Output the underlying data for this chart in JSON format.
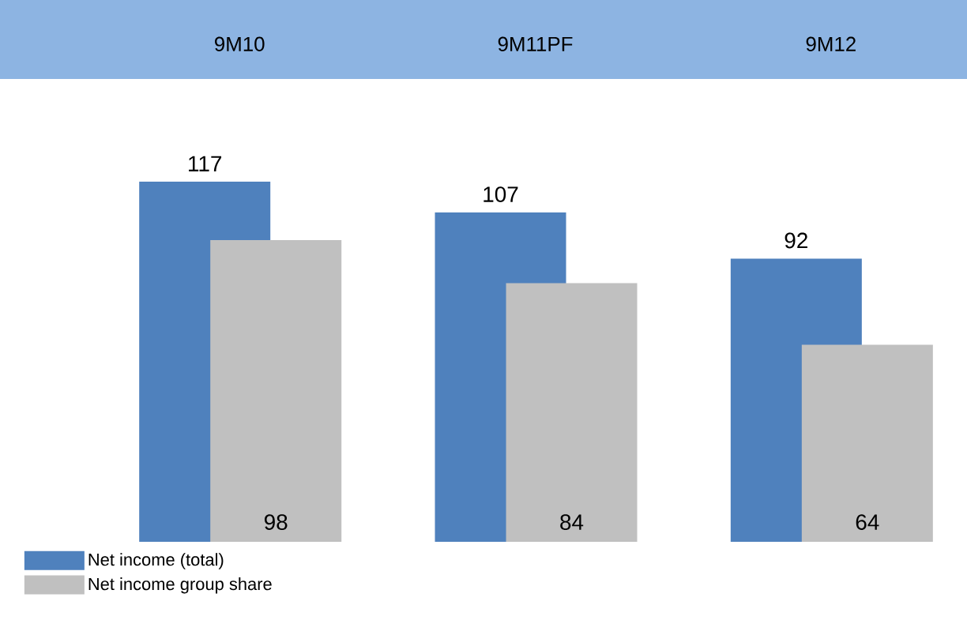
{
  "chart_data": {
    "type": "bar",
    "categories": [
      "9M10",
      "9M11PF",
      "9M12"
    ],
    "series": [
      {
        "name": "Net income (total)",
        "color": "#4f81bd",
        "values": [
          117,
          107,
          92
        ]
      },
      {
        "name": "Net income group share",
        "color": "#c0c0c0",
        "values": [
          98,
          84,
          64
        ]
      }
    ],
    "data_labels": true,
    "legend": "bottom left"
  }
}
